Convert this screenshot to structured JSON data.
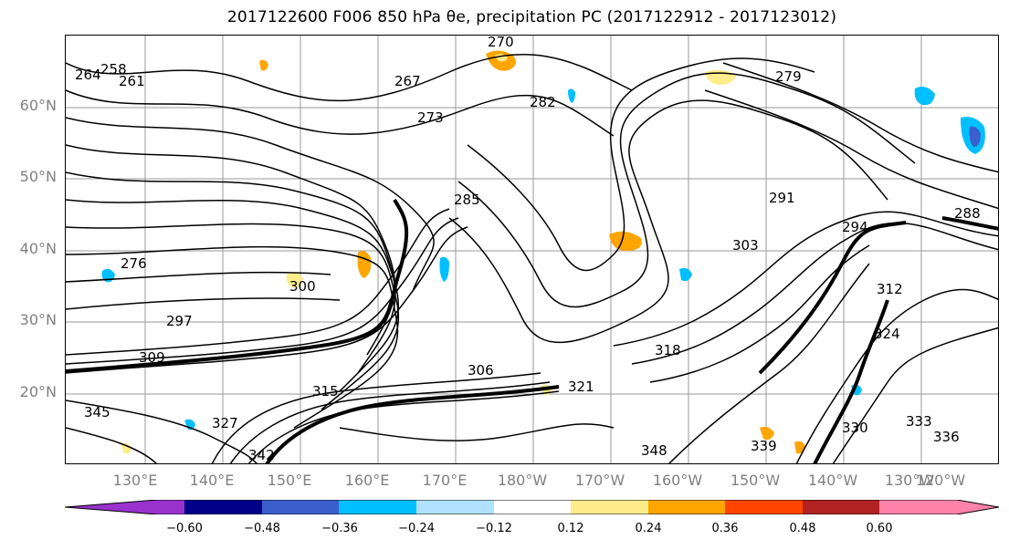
{
  "title": "2017122600 F006 850 hPa θe, precipitation PC (2017122912 - 2017123012)",
  "map": {
    "lat_labels": [
      "60°N",
      "50°N",
      "40°N",
      "30°N",
      "20°N"
    ],
    "lon_labels": [
      "130°E",
      "140°E",
      "150°E",
      "160°E",
      "170°E",
      "180°W",
      "170°W",
      "160°W",
      "150°W",
      "140°W",
      "130°W",
      "120°W"
    ],
    "contour_labels": [
      "264",
      "267",
      "270",
      "273",
      "276",
      "279",
      "282",
      "285",
      "288",
      "291",
      "294",
      "297",
      "300",
      "303",
      "306",
      "309",
      "312",
      "315",
      "318",
      "321",
      "324",
      "327",
      "330",
      "333",
      "336",
      "339",
      "342",
      "345",
      "348",
      "258",
      "261"
    ]
  },
  "colorbar": {
    "colors": [
      "#9932CC",
      "#00008B",
      "#3A5FCD",
      "#00BFFF",
      "#B0E2FF",
      "#FFFFFF",
      "#FFEC8B",
      "#FFA500",
      "#FF4500",
      "#B22222",
      "#FF82AB"
    ],
    "ticks": [
      "−0.60",
      "−0.48",
      "−0.36",
      "−0.24",
      "−0.12",
      "0.12",
      "0.24",
      "0.36",
      "0.48",
      "0.60"
    ]
  }
}
